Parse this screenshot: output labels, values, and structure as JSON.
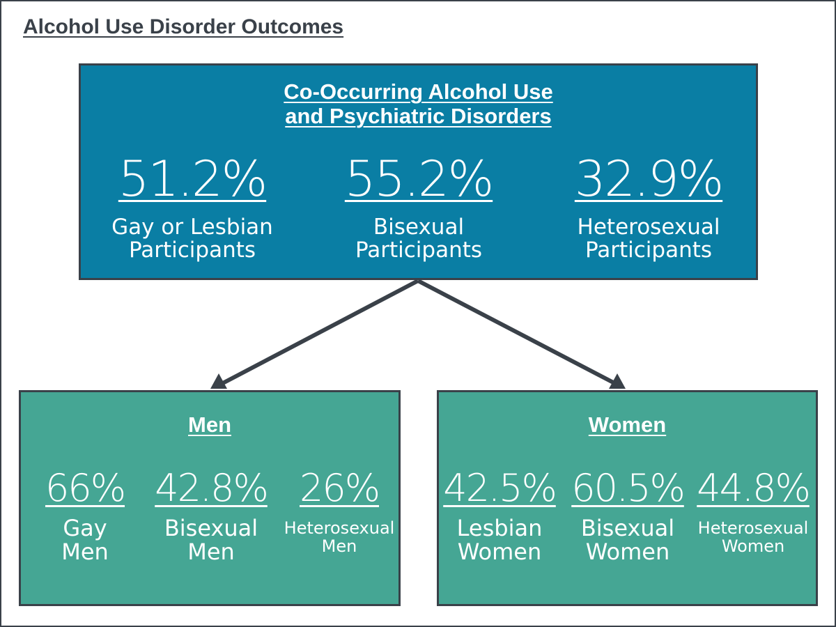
{
  "page_title": "Alcohol Use Disorder Outcomes",
  "colors": {
    "top_box": "#0a7ea4",
    "sub_box": "#45a694",
    "border": "#3a4149",
    "text": "#ffffff"
  },
  "top": {
    "heading_line1": "Co-Occurring Alcohol Use",
    "heading_line2": "and Psychiatric Disorders",
    "stats": [
      {
        "value": "51.2%",
        "label_line1": "Gay or Lesbian",
        "label_line2": "Participants"
      },
      {
        "value": "55.2%",
        "label_line1": "Bisexual",
        "label_line2": "Participants"
      },
      {
        "value": "32.9%",
        "label_line1": "Heterosexual",
        "label_line2": "Participants"
      }
    ]
  },
  "men": {
    "heading": "Men",
    "stats": [
      {
        "value": "66%",
        "label_line1": "Gay",
        "label_line2": "Men"
      },
      {
        "value": "42.8%",
        "label_line1": "Bisexual",
        "label_line2": "Men"
      },
      {
        "value": "26%",
        "label_line1": "Heterosexual",
        "label_line2": "Men"
      }
    ]
  },
  "women": {
    "heading": "Women",
    "stats": [
      {
        "value": "42.5%",
        "label_line1": "Lesbian",
        "label_line2": "Women"
      },
      {
        "value": "60.5%",
        "label_line1": "Bisexual",
        "label_line2": "Women"
      },
      {
        "value": "44.8%",
        "label_line1": "Heterosexual",
        "label_line2": "Women"
      }
    ]
  }
}
